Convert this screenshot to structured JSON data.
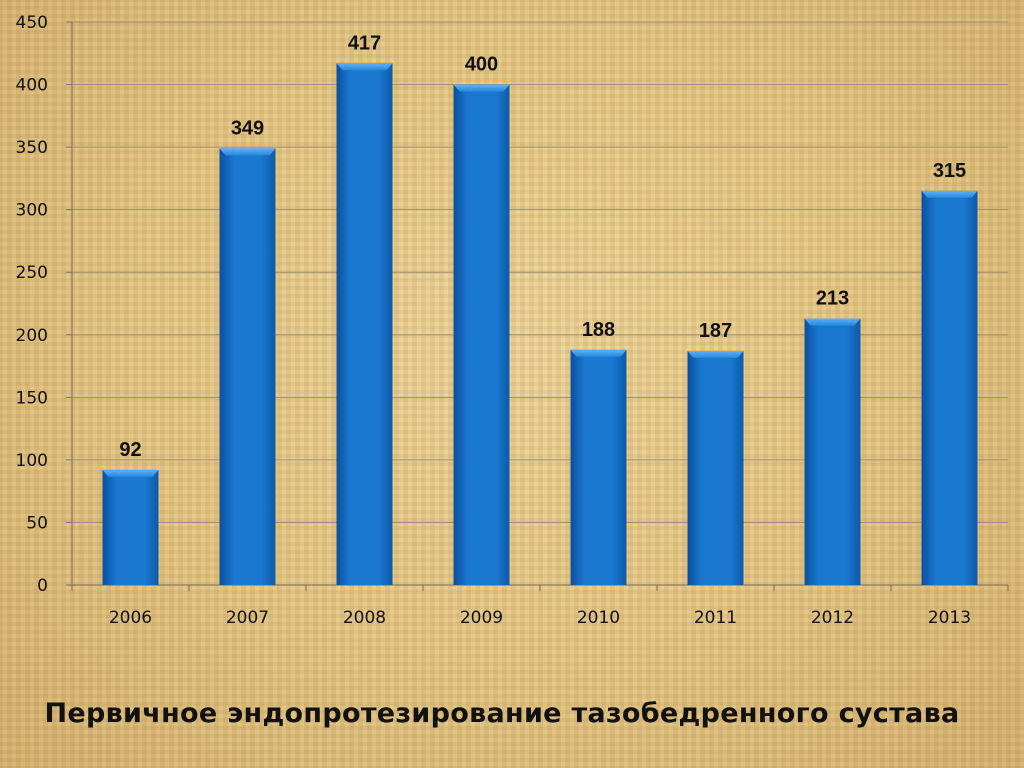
{
  "chart_data": {
    "type": "bar",
    "categories": [
      "2006",
      "2007",
      "2008",
      "2009",
      "2010",
      "2011",
      "2012",
      "2013"
    ],
    "values": [
      92,
      349,
      417,
      400,
      188,
      187,
      213,
      315
    ],
    "ylim": [
      0,
      450
    ],
    "yticks": [
      0,
      50,
      100,
      150,
      200,
      250,
      300,
      350,
      400,
      450
    ],
    "grid": true,
    "bar_color": "#1a78d0",
    "data_labels": true
  },
  "title": "Первичное эндопротезирование тазобедренного сустава"
}
